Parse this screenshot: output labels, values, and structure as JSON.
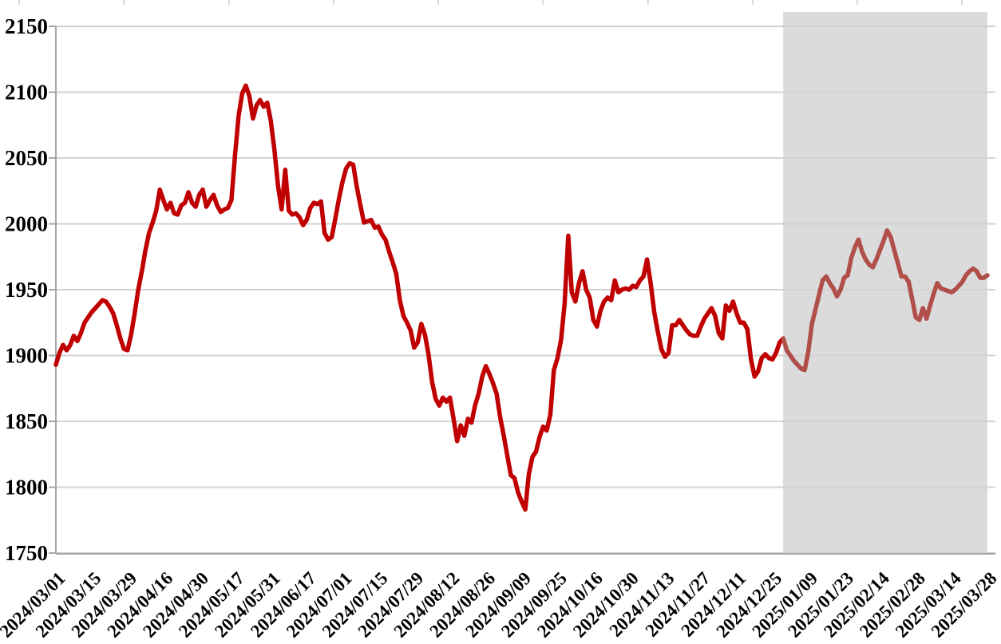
{
  "chart_data": {
    "type": "line",
    "title": "",
    "xlabel": "",
    "ylabel": "",
    "grid": true,
    "legend": "none",
    "ylim": [
      1750,
      2150
    ],
    "y_tick_labels": [
      "2150",
      "2100",
      "2050",
      "2000",
      "1950",
      "1900",
      "1850",
      "1800",
      "1750"
    ],
    "x_tick_labels": [
      "2024/03/01",
      "2024/03/15",
      "2024/03/29",
      "2024/04/16",
      "2024/04/30",
      "2024/05/17",
      "2024/05/31",
      "2024/06/17",
      "2024/07/01",
      "2024/07/15",
      "2024/07/29",
      "2024/08/12",
      "2024/08/26",
      "2024/09/09",
      "2024/09/25",
      "2024/10/16",
      "2024/10/30",
      "2024/11/13",
      "2024/11/27",
      "2024/12/11",
      "2024/12/25",
      "2025/01/09",
      "2025/01/23",
      "2025/02/14",
      "2025/02/28",
      "2025/03/14",
      "2025/03/28"
    ],
    "points_per_tick": 10,
    "forecast_start_index": 203,
    "series_color": "#C00000",
    "forecast_color": "#B04E4A",
    "forecast_band_color": "#DBDBDB",
    "gridline_color": "#D2D2D2",
    "axis_color": "#A6A6A6",
    "top_edge_tick_color": "#D9D9D9",
    "label_color": "#000000",
    "top_edge_ticks_x": [
      24,
      155,
      287,
      418,
      549,
      680,
      812,
      943,
      1074,
      1205
    ],
    "values": [
      1893,
      1902,
      1908,
      1904,
      1908,
      1915,
      1911,
      1917,
      1925,
      1929,
      1933,
      1936,
      1939,
      1942,
      1941,
      1937,
      1932,
      1923,
      1913,
      1905,
      1904,
      1916,
      1932,
      1950,
      1964,
      1980,
      1993,
      2001,
      2010,
      2026,
      2018,
      2011,
      2016,
      2008,
      2007,
      2014,
      2016,
      2024,
      2016,
      2013,
      2022,
      2026,
      2013,
      2018,
      2022,
      2014,
      2009,
      2011,
      2012,
      2018,
      2052,
      2082,
      2099,
      2105,
      2097,
      2080,
      2090,
      2094,
      2089,
      2092,
      2078,
      2056,
      2029,
      2011,
      2041,
      2010,
      2007,
      2008,
      2005,
      1999,
      2003,
      2012,
      2016,
      2015,
      2017,
      1993,
      1988,
      1990,
      2004,
      2019,
      2032,
      2042,
      2046,
      2045,
      2028,
      2014,
      2001,
      2002,
      2003,
      1997,
      1998,
      1992,
      1988,
      1979,
      1971,
      1962,
      1942,
      1930,
      1925,
      1919,
      1906,
      1910,
      1924,
      1916,
      1901,
      1880,
      1867,
      1862,
      1868,
      1865,
      1868,
      1852,
      1835,
      1847,
      1839,
      1852,
      1849,
      1862,
      1871,
      1884,
      1892,
      1886,
      1879,
      1871,
      1853,
      1839,
      1824,
      1809,
      1807,
      1796,
      1789,
      1783,
      1810,
      1823,
      1827,
      1838,
      1846,
      1843,
      1855,
      1889,
      1898,
      1912,
      1940,
      1991,
      1948,
      1941,
      1955,
      1964,
      1950,
      1944,
      1927,
      1922,
      1934,
      1941,
      1944,
      1942,
      1957,
      1948,
      1950,
      1951,
      1950,
      1953,
      1952,
      1957,
      1960,
      1973,
      1955,
      1933,
      1918,
      1905,
      1899,
      1902,
      1923,
      1923,
      1927,
      1923,
      1919,
      1916,
      1915,
      1915,
      1922,
      1928,
      1932,
      1936,
      1930,
      1917,
      1913,
      1938,
      1934,
      1941,
      1932,
      1925,
      1925,
      1920,
      1897,
      1884,
      1888,
      1898,
      1901,
      1898,
      1897,
      1902,
      1910,
      1913,
      1904,
      1900,
      1896,
      1893,
      1890,
      1889,
      1903,
      1924,
      1935,
      1946,
      1957,
      1960,
      1955,
      1951,
      1945,
      1950,
      1959,
      1961,
      1974,
      1982,
      1988,
      1979,
      1973,
      1969,
      1967,
      1973,
      1980,
      1987,
      1995,
      1990,
      1980,
      1970,
      1960,
      1960,
      1956,
      1943,
      1929,
      1927,
      1936,
      1928,
      1938,
      1947,
      1955,
      1951,
      1950,
      1949,
      1948,
      1950,
      1953,
      1956,
      1961,
      1964,
      1966,
      1964,
      1959,
      1959,
      1961
    ]
  }
}
